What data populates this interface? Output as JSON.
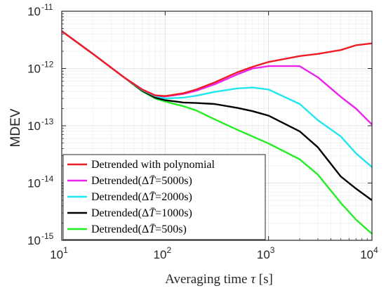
{
  "chart_data": {
    "type": "line",
    "title": "",
    "xlabel": "Averaging time",
    "xlabel_symbol": "τ",
    "xlabel_unit": "[s]",
    "ylabel": "MDEV",
    "xscale": "log",
    "yscale": "log",
    "xlim": [
      10,
      10000
    ],
    "ylim": [
      1e-15,
      1e-11
    ],
    "grid": true,
    "legend_position": "bottom-left",
    "x_ticks": [
      {
        "base": "10",
        "exp": "1"
      },
      {
        "base": "10",
        "exp": "2"
      },
      {
        "base": "10",
        "exp": "3"
      },
      {
        "base": "10",
        "exp": "4"
      }
    ],
    "y_ticks": [
      {
        "base": "10",
        "exp": "-15"
      },
      {
        "base": "10",
        "exp": "-14"
      },
      {
        "base": "10",
        "exp": "-13"
      },
      {
        "base": "10",
        "exp": "-12"
      },
      {
        "base": "10",
        "exp": "-11"
      }
    ],
    "series": [
      {
        "name": "Detrended with polynomial",
        "color": "#ee1c25",
        "points": [
          [
            10,
            4.5e-12
          ],
          [
            20,
            1.8e-12
          ],
          [
            40,
            7e-13
          ],
          [
            60,
            4.3e-13
          ],
          [
            80,
            3.4e-13
          ],
          [
            100,
            3.3e-13
          ],
          [
            150,
            3.7e-13
          ],
          [
            200,
            4.3e-13
          ],
          [
            300,
            5.7e-13
          ],
          [
            500,
            8.6e-13
          ],
          [
            700,
            1.07e-12
          ],
          [
            1000,
            1.3e-12
          ],
          [
            2000,
            1.65e-12
          ],
          [
            3000,
            1.8e-12
          ],
          [
            5000,
            2.1e-12
          ],
          [
            7000,
            2.55e-12
          ],
          [
            10000,
            2.75e-12
          ]
        ]
      },
      {
        "name": "Detrended(ΔT̄=5000s)",
        "color": "#ee22ee",
        "points": [
          [
            10,
            4.5e-12
          ],
          [
            20,
            1.8e-12
          ],
          [
            40,
            7e-13
          ],
          [
            60,
            4.3e-13
          ],
          [
            80,
            3.4e-13
          ],
          [
            100,
            3.25e-13
          ],
          [
            150,
            3.6e-13
          ],
          [
            200,
            4.1e-13
          ],
          [
            300,
            5.3e-13
          ],
          [
            500,
            7.9e-13
          ],
          [
            700,
            1e-12
          ],
          [
            1000,
            1.1e-12
          ],
          [
            2000,
            1.1e-12
          ],
          [
            3000,
            7e-13
          ],
          [
            5000,
            3.2e-13
          ],
          [
            7000,
            2e-13
          ],
          [
            10000,
            1.05e-13
          ]
        ]
      },
      {
        "name": "Detrended(ΔT̄=2000s)",
        "color": "#22e6ee",
        "points": [
          [
            10,
            4.5e-12
          ],
          [
            20,
            1.8e-12
          ],
          [
            40,
            7e-13
          ],
          [
            60,
            4.2e-13
          ],
          [
            80,
            3.3e-13
          ],
          [
            100,
            3e-13
          ],
          [
            150,
            3.1e-13
          ],
          [
            200,
            3.35e-13
          ],
          [
            300,
            3.9e-13
          ],
          [
            500,
            4.5e-13
          ],
          [
            700,
            4.65e-13
          ],
          [
            1000,
            4.3e-13
          ],
          [
            2000,
            2.4e-13
          ],
          [
            3000,
            1.25e-13
          ],
          [
            5000,
            6.5e-14
          ],
          [
            7000,
            3.3e-14
          ],
          [
            10000,
            1.9e-14
          ]
        ]
      },
      {
        "name": "Detrended(ΔT̄=1000s)",
        "color": "#000000",
        "points": [
          [
            10,
            4.5e-12
          ],
          [
            20,
            1.8e-12
          ],
          [
            40,
            7e-13
          ],
          [
            60,
            4.1e-13
          ],
          [
            80,
            3.1e-13
          ],
          [
            100,
            2.8e-13
          ],
          [
            150,
            2.55e-13
          ],
          [
            200,
            2.5e-13
          ],
          [
            300,
            2.4e-13
          ],
          [
            500,
            2.05e-13
          ],
          [
            700,
            1.8e-13
          ],
          [
            1000,
            1.5e-13
          ],
          [
            2000,
            8e-14
          ],
          [
            3000,
            4.2e-14
          ],
          [
            5000,
            1.3e-14
          ],
          [
            7000,
            8e-15
          ],
          [
            10000,
            5e-15
          ]
        ]
      },
      {
        "name": "Detrended(ΔT̄=500s)",
        "color": "#22ee22",
        "points": [
          [
            10,
            4.5e-12
          ],
          [
            20,
            1.8e-12
          ],
          [
            40,
            7e-13
          ],
          [
            60,
            4e-13
          ],
          [
            80,
            3e-13
          ],
          [
            100,
            2.65e-13
          ],
          [
            150,
            2.2e-13
          ],
          [
            200,
            1.85e-13
          ],
          [
            300,
            1.3e-13
          ],
          [
            500,
            8.5e-14
          ],
          [
            700,
            6.5e-14
          ],
          [
            1000,
            4.9e-14
          ],
          [
            2000,
            2.6e-14
          ],
          [
            3000,
            1.4e-14
          ],
          [
            5000,
            4.5e-15
          ],
          [
            7000,
            2.3e-15
          ],
          [
            10000,
            1.3e-15
          ]
        ]
      }
    ],
    "legend_entries": [
      {
        "prefix": "Detrended with polynomial",
        "dt": "",
        "suffix": ""
      },
      {
        "prefix": "Detrended(",
        "dt": "5000s",
        "suffix": ")"
      },
      {
        "prefix": "Detrended(",
        "dt": "2000s",
        "suffix": ")"
      },
      {
        "prefix": "Detrended(",
        "dt": "1000s",
        "suffix": ")"
      },
      {
        "prefix": "Detrended(",
        "dt": "500s",
        "suffix": ")"
      }
    ]
  }
}
